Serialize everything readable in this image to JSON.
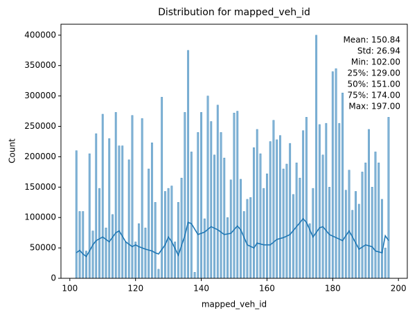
{
  "chart_data": {
    "type": "bar",
    "title": "Distribution for mapped_veh_id",
    "x_label": "mapped_veh_id",
    "y_label": "Count",
    "color": "#1f77b4",
    "x": [
      102,
      103,
      104,
      105,
      106,
      107,
      108,
      109,
      110,
      111,
      112,
      113,
      114,
      115,
      116,
      117,
      118,
      119,
      120,
      121,
      122,
      123,
      124,
      125,
      126,
      127,
      128,
      129,
      130,
      131,
      132,
      133,
      134,
      135,
      136,
      137,
      138,
      139,
      140,
      141,
      142,
      143,
      144,
      145,
      146,
      147,
      148,
      149,
      150,
      151,
      152,
      153,
      154,
      155,
      156,
      157,
      158,
      159,
      160,
      161,
      162,
      163,
      164,
      165,
      166,
      167,
      168,
      169,
      170,
      171,
      172,
      173,
      174,
      175,
      176,
      177,
      178,
      179,
      180,
      181,
      182,
      183,
      184,
      185,
      186,
      187,
      188,
      189,
      190,
      191,
      192,
      193,
      194,
      195,
      196,
      197
    ],
    "values": [
      210000,
      110000,
      110000,
      45000,
      205000,
      78000,
      238000,
      148000,
      270000,
      83000,
      230000,
      105000,
      273000,
      218000,
      218000,
      60000,
      195000,
      268000,
      60000,
      90000,
      263000,
      83000,
      180000,
      223000,
      125000,
      15000,
      298000,
      143000,
      148000,
      152000,
      60000,
      125000,
      165000,
      273000,
      375000,
      208000,
      10000,
      240000,
      273000,
      98000,
      300000,
      258000,
      203000,
      285000,
      240000,
      198000,
      100000,
      162000,
      272000,
      275000,
      163000,
      110000,
      130000,
      133000,
      215000,
      245000,
      205000,
      148000,
      172000,
      225000,
      260000,
      228000,
      235000,
      180000,
      188000,
      222000,
      138000,
      190000,
      165000,
      243000,
      265000,
      90000,
      148000,
      400000,
      253000,
      203000,
      255000,
      150000,
      340000,
      345000,
      255000,
      305000,
      145000,
      178000,
      112000,
      143000,
      122000,
      175000,
      190000,
      245000,
      150000,
      208000,
      190000,
      130000,
      50000,
      265000
    ],
    "kde": {
      "color": "#1f77b4",
      "x": [
        102,
        103,
        104,
        105,
        106,
        107,
        108,
        110,
        112,
        114,
        115,
        117,
        119,
        120,
        121,
        123,
        125,
        126,
        127,
        129,
        130,
        131,
        133,
        135,
        136,
        137,
        139,
        141,
        143,
        145,
        147,
        149,
        151,
        152,
        154,
        156,
        157,
        159,
        161,
        163,
        165,
        167,
        169,
        171,
        172,
        174,
        176,
        177,
        179,
        181,
        183,
        185,
        186,
        188,
        190,
        192,
        193,
        195,
        196,
        197
      ],
      "y": [
        42000,
        46000,
        40000,
        36000,
        45000,
        55000,
        62000,
        68000,
        60000,
        75000,
        78000,
        60000,
        52000,
        55000,
        52000,
        48000,
        45000,
        42000,
        40000,
        55000,
        68000,
        60000,
        38000,
        70000,
        92000,
        90000,
        72000,
        76000,
        85000,
        80000,
        72000,
        74000,
        86000,
        80000,
        55000,
        50000,
        58000,
        55000,
        55000,
        64000,
        67000,
        72000,
        85000,
        98000,
        92000,
        68000,
        83000,
        85000,
        72000,
        67000,
        62000,
        78000,
        68000,
        48000,
        55000,
        52000,
        45000,
        42000,
        70000,
        62000
      ]
    },
    "annotation": [
      "Mean: 150.84",
      "Std: 26.94",
      "Min: 102.00",
      "25%: 129.00",
      "50%: 151.00",
      "75%: 174.00",
      "Max: 197.00"
    ],
    "xlim": [
      97.3,
      202.7
    ],
    "ylim": [
      0,
      418000
    ],
    "xticks": [
      100,
      120,
      140,
      160,
      180,
      200
    ],
    "yticks": [
      0,
      50000,
      100000,
      150000,
      200000,
      250000,
      300000,
      350000,
      400000
    ]
  }
}
